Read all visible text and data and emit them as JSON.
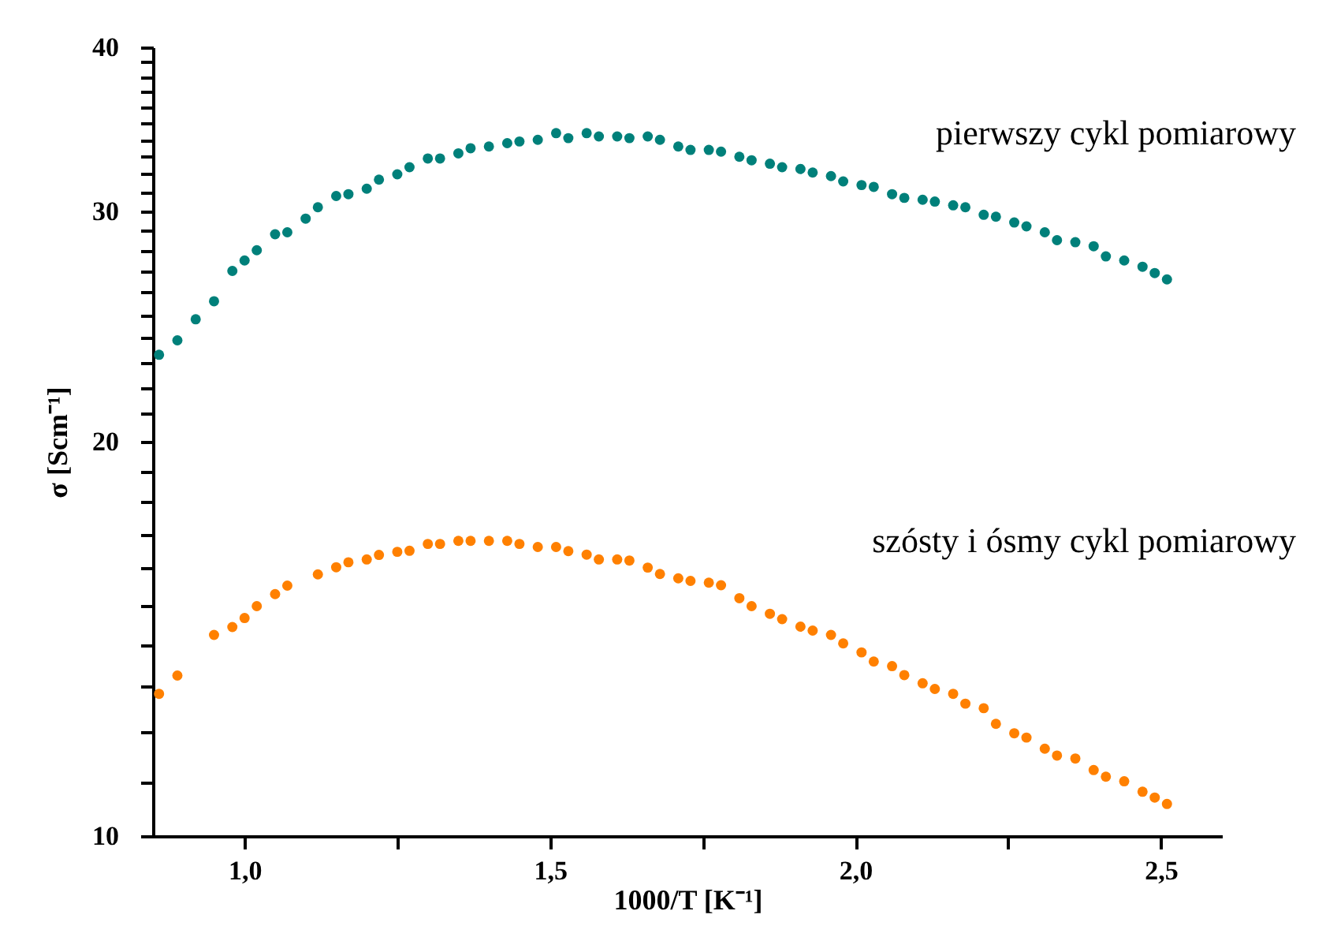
{
  "chart_data": {
    "type": "scatter",
    "xlabel": "1000/T [K⁻¹]",
    "ylabel": "σ [Scm⁻¹]",
    "log": "y",
    "marker": "circle",
    "grid": false,
    "legend": false,
    "xlim": [
      0.85,
      2.6
    ],
    "xticks": [
      {
        "value": 1.0,
        "label": "1,0"
      },
      {
        "value": 1.25,
        "label": null
      },
      {
        "value": 1.5,
        "label": "1,5"
      },
      {
        "value": 1.75,
        "label": null
      },
      {
        "value": 2.0,
        "label": "2,0"
      },
      {
        "value": 2.25,
        "label": null
      },
      {
        "value": 2.5,
        "label": "2,5"
      }
    ],
    "ylim": [
      10,
      40
    ],
    "yticks": [
      10,
      {
        "value": 11,
        "label": null
      },
      {
        "value": 12,
        "label": null
      },
      {
        "value": 13,
        "label": null
      },
      {
        "value": 14,
        "label": null
      },
      {
        "value": 15,
        "label": null
      },
      {
        "value": 16,
        "label": null
      },
      {
        "value": 17,
        "label": null
      },
      {
        "value": 18,
        "label": null
      },
      {
        "value": 19,
        "label": null
      },
      20,
      {
        "value": 21,
        "label": null
      },
      {
        "value": 22,
        "label": null
      },
      {
        "value": 23,
        "label": null
      },
      {
        "value": 24,
        "label": null
      },
      {
        "value": 25,
        "label": null
      },
      {
        "value": 26,
        "label": null
      },
      {
        "value": 27,
        "label": null
      },
      {
        "value": 28,
        "label": null
      },
      {
        "value": 29,
        "label": null
      },
      30,
      {
        "value": 31,
        "label": null
      },
      {
        "value": 32,
        "label": null
      },
      {
        "value": 33,
        "label": null
      },
      {
        "value": 34,
        "label": null
      },
      {
        "value": 35,
        "label": null
      },
      {
        "value": 36,
        "label": null
      },
      {
        "value": 37,
        "label": null
      },
      {
        "value": 38,
        "label": null
      },
      {
        "value": 39,
        "label": null
      },
      40
    ],
    "series": [
      {
        "name": "pierwszy cykl pomiarowy",
        "color": "#00807a",
        "x": [
          0.86,
          0.89,
          0.92,
          0.95,
          0.98,
          1.0,
          1.02,
          1.05,
          1.07,
          1.1,
          1.12,
          1.15,
          1.17,
          1.2,
          1.22,
          1.25,
          1.27,
          1.3,
          1.32,
          1.35,
          1.37,
          1.4,
          1.43,
          1.45,
          1.48,
          1.51,
          1.53,
          1.56,
          1.58,
          1.61,
          1.63,
          1.66,
          1.68,
          1.71,
          1.73,
          1.76,
          1.78,
          1.81,
          1.83,
          1.86,
          1.88,
          1.91,
          1.93,
          1.96,
          1.98,
          2.01,
          2.03,
          2.06,
          2.08,
          2.11,
          2.13,
          2.16,
          2.18,
          2.21,
          2.23,
          2.26,
          2.28,
          2.31,
          2.33,
          2.36,
          2.39,
          2.41,
          2.44,
          2.47,
          2.49,
          2.51
        ],
        "values": [
          23.3,
          23.9,
          24.8,
          25.6,
          27.0,
          27.5,
          28.0,
          28.8,
          28.9,
          29.6,
          30.2,
          30.8,
          30.9,
          31.2,
          31.7,
          32.0,
          32.4,
          32.9,
          32.9,
          33.2,
          33.5,
          33.6,
          33.8,
          33.9,
          34.0,
          34.4,
          34.1,
          34.4,
          34.2,
          34.2,
          34.1,
          34.2,
          34.0,
          33.6,
          33.4,
          33.4,
          33.3,
          33.0,
          32.8,
          32.6,
          32.4,
          32.3,
          32.1,
          31.9,
          31.6,
          31.4,
          31.3,
          30.9,
          30.7,
          30.6,
          30.5,
          30.3,
          30.2,
          29.8,
          29.7,
          29.4,
          29.2,
          28.9,
          28.5,
          28.4,
          28.2,
          27.7,
          27.5,
          27.2,
          26.9,
          26.6
        ]
      },
      {
        "name": "szósty i ósmy cykl pomiarowy",
        "color": "#ff8000",
        "x": [
          0.86,
          0.89,
          0.95,
          0.98,
          1.0,
          1.02,
          1.05,
          1.07,
          1.12,
          1.15,
          1.17,
          1.2,
          1.22,
          1.25,
          1.27,
          1.3,
          1.32,
          1.35,
          1.37,
          1.4,
          1.43,
          1.45,
          1.48,
          1.51,
          1.53,
          1.56,
          1.58,
          1.61,
          1.63,
          1.66,
          1.68,
          1.71,
          1.73,
          1.76,
          1.78,
          1.81,
          1.83,
          1.86,
          1.88,
          1.91,
          1.93,
          1.96,
          1.98,
          2.01,
          2.03,
          2.06,
          2.08,
          2.11,
          2.13,
          2.16,
          2.18,
          2.21,
          2.23,
          2.26,
          2.28,
          2.31,
          2.33,
          2.36,
          2.39,
          2.41,
          2.44,
          2.47,
          2.49,
          2.51
        ],
        "values": [
          12.84,
          13.26,
          14.24,
          14.44,
          14.67,
          14.98,
          15.3,
          15.53,
          15.84,
          16.04,
          16.18,
          16.26,
          16.39,
          16.48,
          16.51,
          16.71,
          16.71,
          16.8,
          16.8,
          16.8,
          16.8,
          16.71,
          16.62,
          16.62,
          16.5,
          16.4,
          16.26,
          16.26,
          16.23,
          16.03,
          15.85,
          15.73,
          15.66,
          15.61,
          15.54,
          15.19,
          14.98,
          14.78,
          14.64,
          14.45,
          14.35,
          14.24,
          14.03,
          13.81,
          13.59,
          13.48,
          13.27,
          13.08,
          12.95,
          12.84,
          12.62,
          12.52,
          12.18,
          11.98,
          11.89,
          11.66,
          11.52,
          11.46,
          11.23,
          11.1,
          11.01,
          10.81,
          10.7,
          10.58
        ]
      }
    ]
  }
}
